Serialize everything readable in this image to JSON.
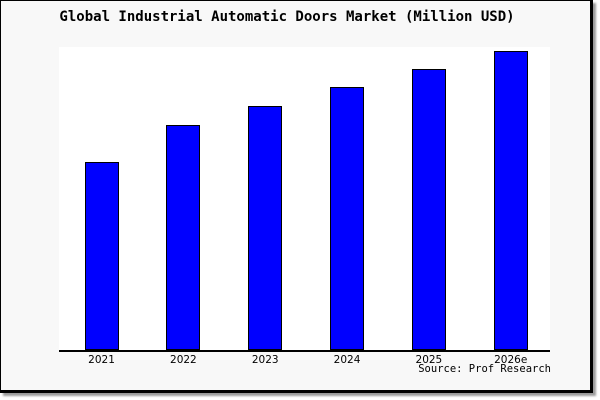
{
  "chart": {
    "title": "Global Industrial Automatic Doors Market (Million USD)",
    "source": "Source: Prof Research",
    "colors": {
      "bar_fill": "#0000ff",
      "bar_border": "#000000",
      "plot_background": "#ffffff",
      "surface_background": "#f8f8f8",
      "frame_border": "#000000",
      "shadow": "#9a9a9a",
      "text": "#000000"
    }
  },
  "chart_data": {
    "type": "bar",
    "title": "Global Industrial Automatic Doors Market (Million USD)",
    "categories": [
      "2021",
      "2022",
      "2023",
      "2024",
      "2025",
      "2026e"
    ],
    "values": [
      188,
      225,
      244,
      263,
      281,
      299
    ],
    "value_units": "relative height (y-axis has no tick labels in the image)",
    "xlabel": "",
    "ylabel": "",
    "ylim": [
      0,
      303
    ],
    "grid": false,
    "legend": false,
    "y_tick_labels_visible": false,
    "annotations": [
      "Source: Prof Research"
    ]
  }
}
